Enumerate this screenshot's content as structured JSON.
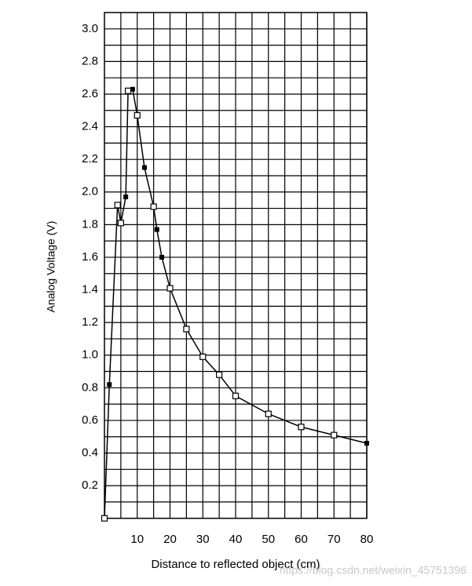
{
  "chart_data": {
    "type": "line",
    "x_label": "Distance to reflected object (cm)",
    "y_label": "Analog Voltage (V)",
    "watermark": "https://blog.csdn.net/weixin_45751396",
    "x": [
      0,
      1.5,
      4,
      5,
      6.5,
      7.2,
      8.6,
      10,
      12.2,
      15,
      16,
      17.5,
      20,
      25,
      30,
      35,
      40,
      50,
      60,
      70,
      80
    ],
    "series": [
      {
        "color": "#000000",
        "values": [
          0,
          0.82,
          1.92,
          1.81,
          1.97,
          2.62,
          2.63,
          2.47,
          2.15,
          1.91,
          1.77,
          1.6,
          1.41,
          1.16,
          0.99,
          0.88,
          0.75,
          0.64,
          0.56,
          0.51,
          0.46
        ],
        "markers": [
          "square",
          "dot",
          "square",
          "square",
          "dot",
          "square",
          "dot",
          "square",
          "dot",
          "square",
          "dot",
          "dot",
          "square",
          "square",
          "square",
          "square",
          "square",
          "square",
          "square",
          "square",
          "dot"
        ]
      }
    ],
    "xlim": [
      0,
      80
    ],
    "xticks": [
      10,
      20,
      30,
      40,
      50,
      60,
      70,
      80
    ],
    "ylim": [
      0,
      3.1
    ],
    "yticks": [
      0.2,
      0.4,
      0.6,
      0.8,
      {
        "value": 1,
        "label": "1.0"
      },
      1.2,
      1.4,
      1.6,
      1.8,
      {
        "value": 2,
        "label": "2.0"
      },
      2.2,
      2.4,
      2.6,
      2.8,
      {
        "value": 3,
        "label": "3.0"
      }
    ],
    "grid": true
  }
}
